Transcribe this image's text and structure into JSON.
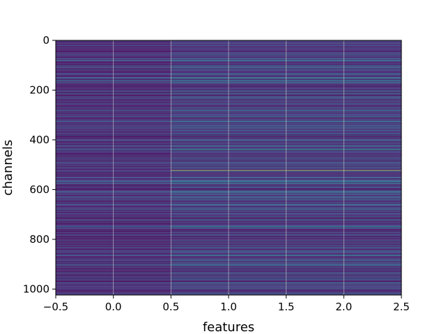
{
  "chart_data": {
    "type": "heatmap",
    "title": "",
    "xlabel": "features",
    "ylabel": "channels",
    "colormap": "viridis",
    "xlim": [
      -0.5,
      2.5
    ],
    "ylim": [
      1024,
      0
    ],
    "x_ticks": [
      -0.5,
      0.0,
      0.5,
      1.0,
      1.5,
      2.0,
      2.5
    ],
    "x_tick_labels": [
      "−0.5",
      "0.0",
      "0.5",
      "1.0",
      "1.5",
      "2.0",
      "2.5"
    ],
    "y_ticks": [
      0,
      200,
      400,
      600,
      800,
      1000
    ],
    "y_tick_labels": [
      "0",
      "200",
      "400",
      "600",
      "800",
      "1000"
    ],
    "grid": true,
    "columns": [
      "0",
      "1",
      "2"
    ],
    "n_rows": 1024,
    "notable_rows": [
      {
        "row": 440,
        "values": [
          0.4,
          0.55,
          0.55
        ]
      },
      {
        "row": 522,
        "values": [
          0.2,
          0.85,
          0.85
        ]
      },
      {
        "row": 748,
        "values": [
          0.35,
          0.45,
          0.45
        ]
      },
      {
        "row": 160,
        "values": [
          0.35,
          0.4,
          0.4
        ]
      },
      {
        "row": 380,
        "values": [
          0.3,
          0.38,
          0.38
        ]
      },
      {
        "row": 565,
        "values": [
          0.3,
          0.38,
          0.38
        ]
      },
      {
        "row": 590,
        "values": [
          0.08,
          0.25,
          0.25
        ]
      },
      {
        "row": 955,
        "values": [
          0.3,
          0.4,
          0.4
        ]
      }
    ]
  }
}
